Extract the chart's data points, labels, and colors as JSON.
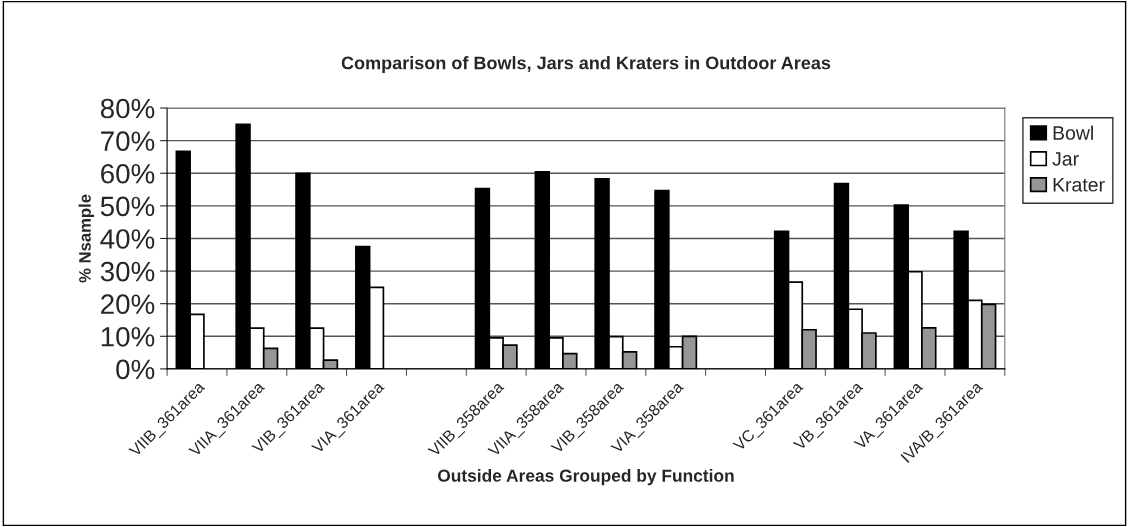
{
  "chart_data": {
    "type": "bar",
    "title": "Comparison of Bowls, Jars and Kraters in Outdoor Areas",
    "xlabel": "Outside Areas Grouped by Function",
    "ylabel": "% Nsample",
    "categories": [
      "VIIB_361area",
      "VIIA_361area",
      "VIB_361area",
      "VIA_361area",
      null,
      "VIIB_358area",
      "VIIA_358area",
      "VIB_358area",
      "VIA_358area",
      null,
      "VC_361area",
      "VB_361area",
      "VA_361area",
      "IVA/B_361area"
    ],
    "series": [
      {
        "name": "Bowl",
        "color": "#000000",
        "values": [
          66.7,
          75,
          60,
          37.5,
          null,
          55.3,
          60.4,
          58.3,
          54.7,
          null,
          42.2,
          56.8,
          50.2,
          42.2
        ]
      },
      {
        "name": "Jar",
        "color": "#ffffff",
        "values": [
          16.7,
          12.5,
          12.5,
          25,
          null,
          9.5,
          9.5,
          9.9,
          6.8,
          null,
          26.6,
          18.3,
          29.8,
          21.0
        ]
      },
      {
        "name": "Krater",
        "color": "#969696",
        "values": [
          null,
          6.3,
          2.7,
          null,
          null,
          7.3,
          4.7,
          5.2,
          10,
          null,
          12.0,
          11.0,
          12.6,
          19.8
        ]
      }
    ],
    "ylim": [
      0,
      80
    ],
    "yticks": [
      {
        "value": 0,
        "label": "0%"
      },
      {
        "value": 10,
        "label": "10%"
      },
      {
        "value": 20,
        "label": "20%"
      },
      {
        "value": 30,
        "label": "30%"
      },
      {
        "value": 40,
        "label": "40%"
      },
      {
        "value": 50,
        "label": "50%"
      },
      {
        "value": 60,
        "label": "60%"
      },
      {
        "value": 70,
        "label": "70%"
      },
      {
        "value": 80,
        "label": "80%"
      }
    ],
    "grid": "y",
    "legend": "right"
  }
}
